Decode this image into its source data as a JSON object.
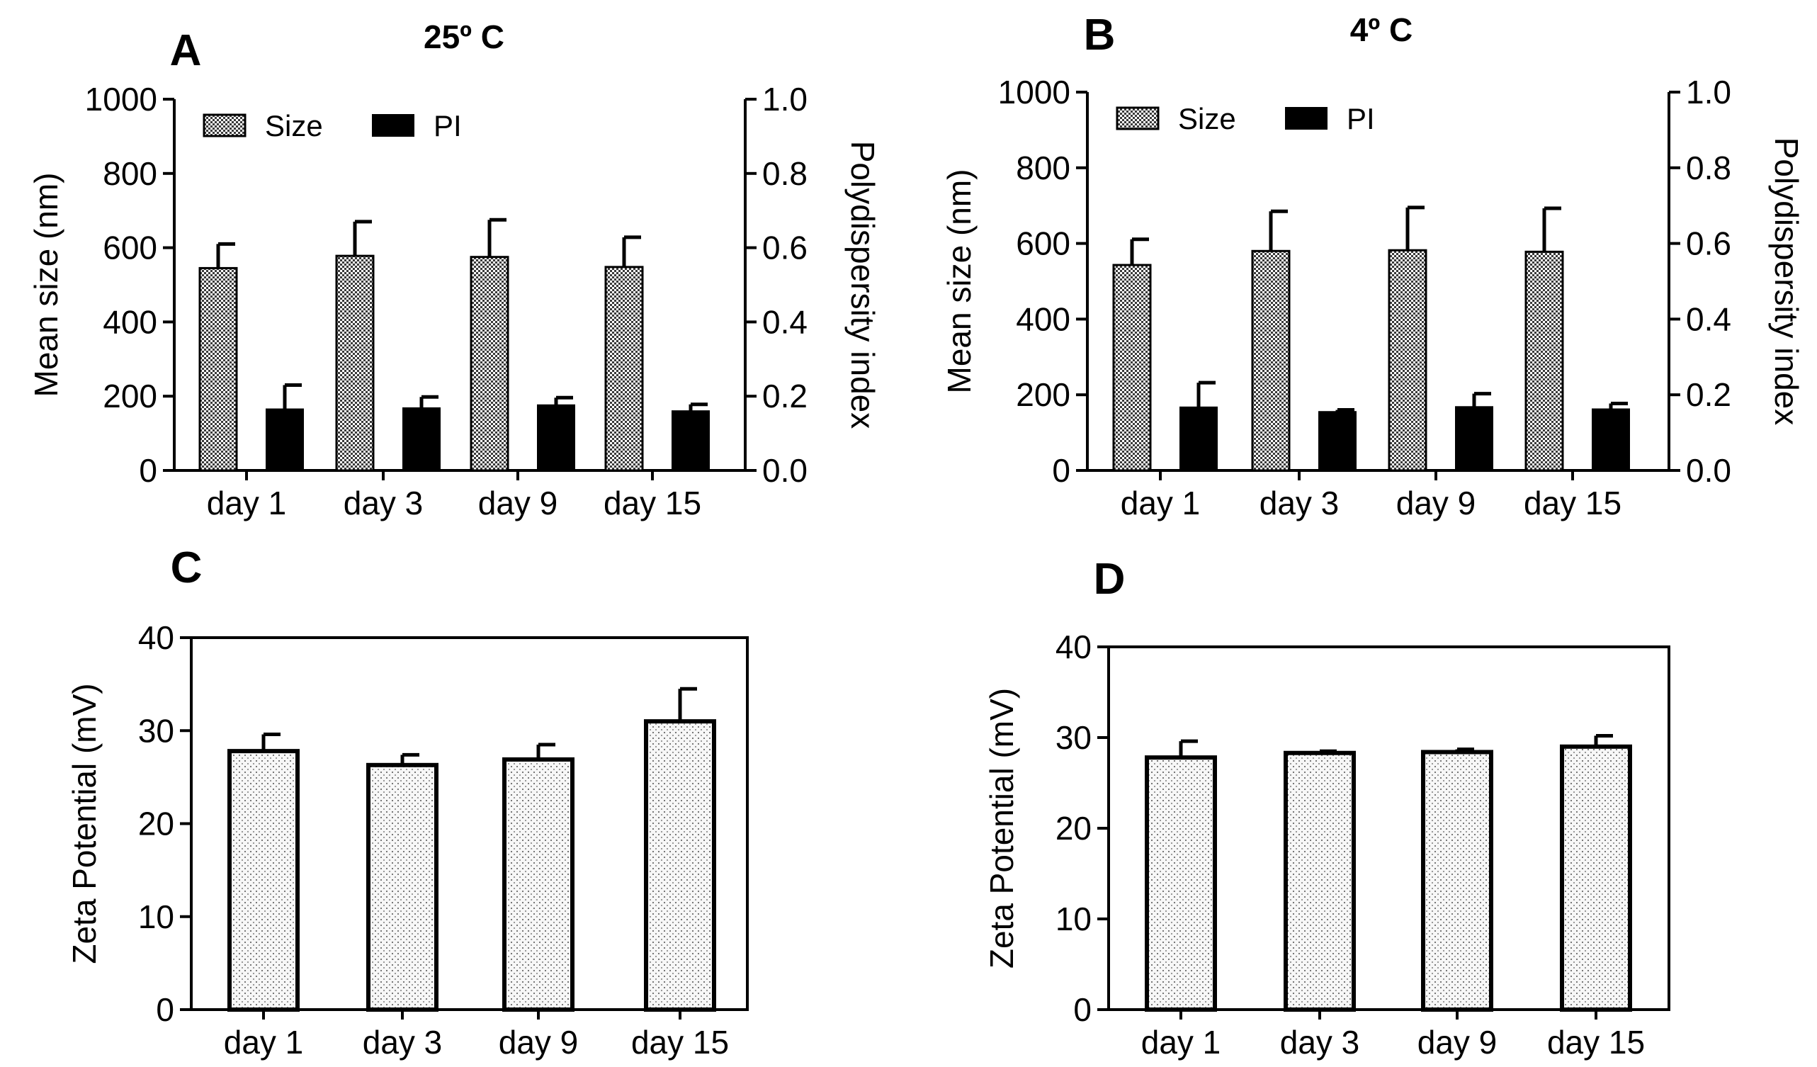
{
  "chart_data": [
    {
      "panel": "A",
      "type": "bar",
      "title": "25º C",
      "categories": [
        "day 1",
        "day 3",
        "day 9",
        "day 15"
      ],
      "ylabel": "Mean size (nm)",
      "ylim": [
        0,
        1000
      ],
      "yticks": [
        "0",
        "200",
        "400",
        "600",
        "800",
        "1000"
      ],
      "y2label": "Polydispersity index",
      "y2lim": [
        0,
        1.0
      ],
      "y2ticks": [
        "0.0",
        "0.2",
        "0.4",
        "0.6",
        "0.8",
        "1.0"
      ],
      "legend_position": "top-left",
      "series": [
        {
          "name": "Size",
          "axis": "left",
          "pattern": "checker",
          "values": [
            545,
            578,
            575,
            548
          ],
          "errors": [
            65,
            92,
            100,
            80
          ]
        },
        {
          "name": "PI",
          "axis": "right",
          "pattern": "solid",
          "values": [
            0.165,
            0.168,
            0.176,
            0.16
          ],
          "errors": [
            0.065,
            0.03,
            0.02,
            0.018
          ]
        }
      ]
    },
    {
      "panel": "B",
      "type": "bar",
      "title": "4º C",
      "categories": [
        "day 1",
        "day 3",
        "day 9",
        "day 15"
      ],
      "ylabel": "Mean size (nm)",
      "ylim": [
        0,
        1000
      ],
      "yticks": [
        "0",
        "200",
        "400",
        "600",
        "800",
        "1000"
      ],
      "y2label": "Polydispersity index",
      "y2lim": [
        0,
        1.0
      ],
      "y2ticks": [
        "0.0",
        "0.2",
        "0.4",
        "0.6",
        "0.8",
        "1.0"
      ],
      "legend_position": "top-left",
      "series": [
        {
          "name": "Size",
          "axis": "left",
          "pattern": "checker",
          "values": [
            543,
            580,
            582,
            578
          ],
          "errors": [
            68,
            105,
            113,
            115
          ]
        },
        {
          "name": "PI",
          "axis": "right",
          "pattern": "solid",
          "values": [
            0.167,
            0.155,
            0.168,
            0.162
          ],
          "errors": [
            0.065,
            0.005,
            0.035,
            0.015
          ]
        }
      ]
    },
    {
      "panel": "C",
      "type": "bar",
      "title": "",
      "categories": [
        "day 1",
        "day 3",
        "day 9",
        "day 15"
      ],
      "ylabel": "Zeta Potential (mV)",
      "ylim": [
        0,
        40
      ],
      "yticks": [
        "0",
        "10",
        "20",
        "30",
        "40"
      ],
      "series": [
        {
          "name": "Zeta Potential",
          "axis": "left",
          "pattern": "dots",
          "values": [
            27.8,
            26.3,
            26.9,
            31.0
          ],
          "errors": [
            1.8,
            1.1,
            1.6,
            3.5
          ]
        }
      ]
    },
    {
      "panel": "D",
      "type": "bar",
      "title": "",
      "categories": [
        "day 1",
        "day 3",
        "day 9",
        "day 15"
      ],
      "ylabel": "Zeta Potential (mV)",
      "ylim": [
        0,
        40
      ],
      "yticks": [
        "0",
        "10",
        "20",
        "30",
        "40"
      ],
      "series": [
        {
          "name": "Zeta Potential",
          "axis": "left",
          "pattern": "dots",
          "values": [
            27.8,
            28.3,
            28.4,
            29.0
          ],
          "errors": [
            1.8,
            0.2,
            0.3,
            1.2
          ]
        }
      ]
    }
  ]
}
